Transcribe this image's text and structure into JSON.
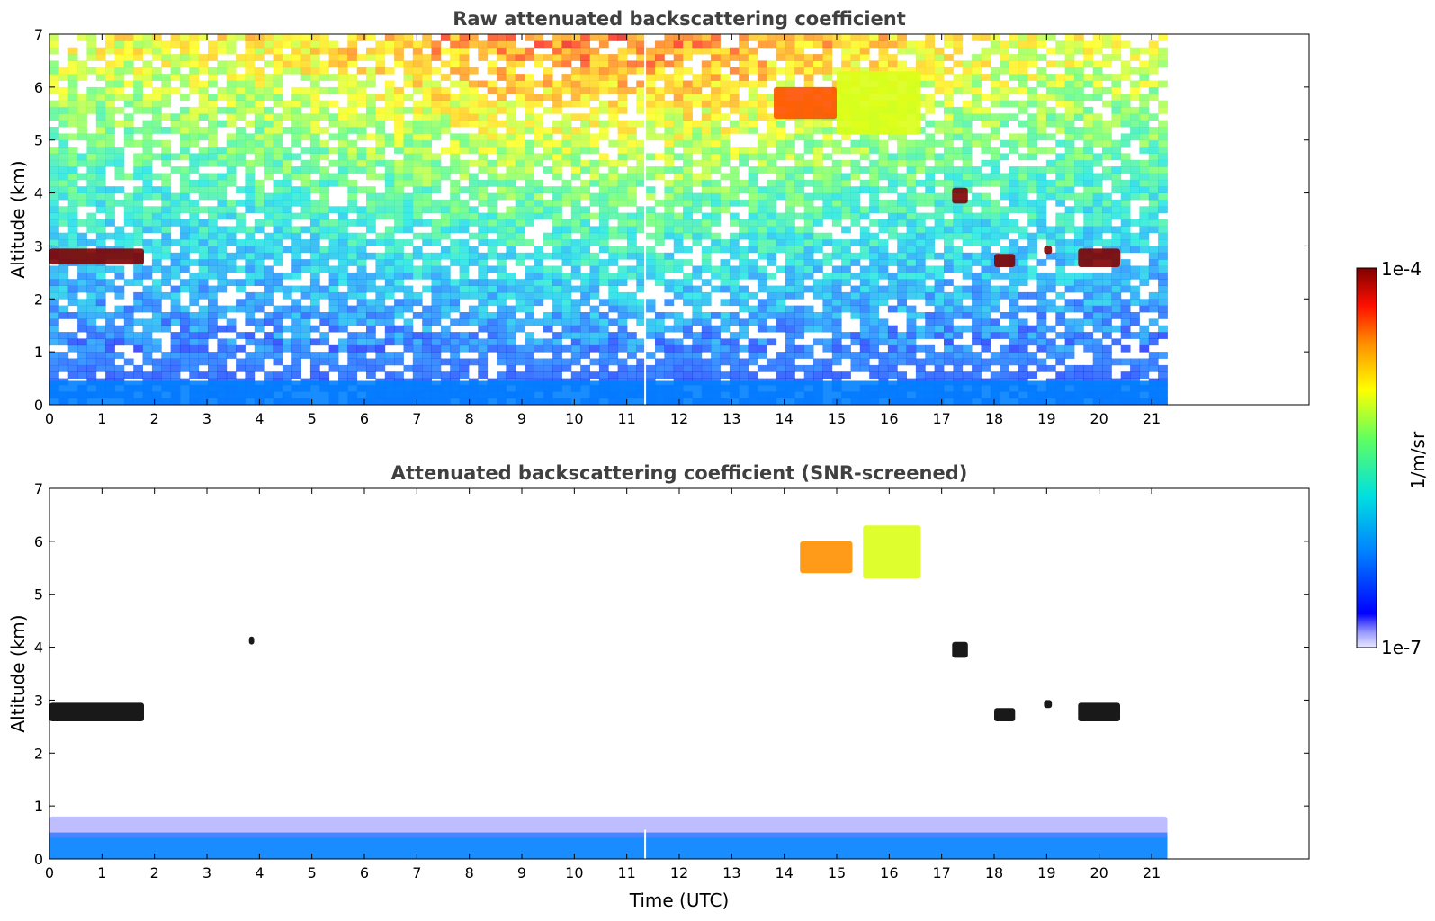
{
  "chart_data": [
    {
      "type": "heatmap",
      "title": "Raw attenuated backscattering coefficient",
      "xlabel": "",
      "ylabel": "Altitude (km)",
      "xlim": [
        0,
        24
      ],
      "ylim": [
        0,
        7
      ],
      "x_ticks": [
        "0",
        "1",
        "2",
        "3",
        "4",
        "5",
        "6",
        "7",
        "8",
        "9",
        "10",
        "11",
        "12",
        "13",
        "14",
        "15",
        "16",
        "17",
        "18",
        "19",
        "20",
        "21"
      ],
      "y_ticks": [
        "0",
        "1",
        "2",
        "3",
        "4",
        "5",
        "6",
        "7"
      ],
      "data_extent_x": [
        0,
        21.3
      ],
      "data_gap_x": 11.35,
      "features": [
        {
          "label": "surface layer",
          "x": [
            0,
            21.3
          ],
          "y": [
            0,
            0.45
          ],
          "level": 0.25
        },
        {
          "label": "cloud",
          "x": [
            0,
            1.8
          ],
          "y": [
            2.65,
            2.95
          ],
          "level": 1.0
        },
        {
          "label": "cloud",
          "x": [
            17.2,
            17.5
          ],
          "y": [
            3.8,
            4.1
          ],
          "level": 1.0
        },
        {
          "label": "cloud",
          "x": [
            18.0,
            18.4
          ],
          "y": [
            2.6,
            2.85
          ],
          "level": 1.0
        },
        {
          "label": "cloud",
          "x": [
            18.95,
            19.1
          ],
          "y": [
            2.85,
            3.0
          ],
          "level": 1.0
        },
        {
          "label": "cloud",
          "x": [
            19.6,
            20.4
          ],
          "y": [
            2.6,
            2.95
          ],
          "level": 1.0
        },
        {
          "label": "cirrus",
          "x": [
            13.8,
            15.0
          ],
          "y": [
            5.4,
            6.0
          ],
          "level": 0.85
        },
        {
          "label": "cirrus",
          "x": [
            15.0,
            16.6
          ],
          "y": [
            5.1,
            6.3
          ],
          "level": 0.65
        }
      ]
    },
    {
      "type": "heatmap",
      "title": "Attenuated backscattering coefficient (SNR-screened)",
      "xlabel": "Time (UTC)",
      "ylabel": "Altitude (km)",
      "xlim": [
        0,
        24
      ],
      "ylim": [
        0,
        7
      ],
      "x_ticks": [
        "0",
        "1",
        "2",
        "3",
        "4",
        "5",
        "6",
        "7",
        "8",
        "9",
        "10",
        "11",
        "12",
        "13",
        "14",
        "15",
        "16",
        "17",
        "18",
        "19",
        "20",
        "21"
      ],
      "y_ticks": [
        "0",
        "1",
        "2",
        "3",
        "4",
        "5",
        "6",
        "7"
      ],
      "data_extent_x": [
        0,
        21.3
      ],
      "data_gap_x": 11.35,
      "features": [
        {
          "label": "surface layer",
          "x": [
            0,
            21.3
          ],
          "y": [
            0,
            0.5
          ],
          "level": 0.25
        },
        {
          "label": "screened aerosol",
          "x": [
            0,
            21.3
          ],
          "y": [
            0.4,
            0.8
          ],
          "level": 0.05
        },
        {
          "label": "cloud",
          "x": [
            0,
            1.8
          ],
          "y": [
            2.6,
            2.95
          ],
          "level": 1.0
        },
        {
          "label": "cloud",
          "x": [
            3.8,
            3.9
          ],
          "y": [
            4.05,
            4.2
          ],
          "level": 1.0
        },
        {
          "label": "cloud",
          "x": [
            17.2,
            17.5
          ],
          "y": [
            3.8,
            4.1
          ],
          "level": 1.0
        },
        {
          "label": "cloud",
          "x": [
            18.0,
            18.4
          ],
          "y": [
            2.6,
            2.85
          ],
          "level": 1.0
        },
        {
          "label": "cloud",
          "x": [
            18.95,
            19.1
          ],
          "y": [
            2.85,
            3.0
          ],
          "level": 1.0
        },
        {
          "label": "cloud",
          "x": [
            19.6,
            20.4
          ],
          "y": [
            2.6,
            2.95
          ],
          "level": 1.0
        },
        {
          "label": "cirrus",
          "x": [
            14.3,
            15.3
          ],
          "y": [
            5.4,
            6.0
          ],
          "level": 0.8
        },
        {
          "label": "cirrus",
          "x": [
            15.5,
            16.6
          ],
          "y": [
            5.3,
            6.3
          ],
          "level": 0.65
        }
      ]
    }
  ],
  "colorbar": {
    "min_label": "1e-7",
    "max_label": "1e-4",
    "unit_label": "1/m/sr",
    "colormap": "jet"
  }
}
